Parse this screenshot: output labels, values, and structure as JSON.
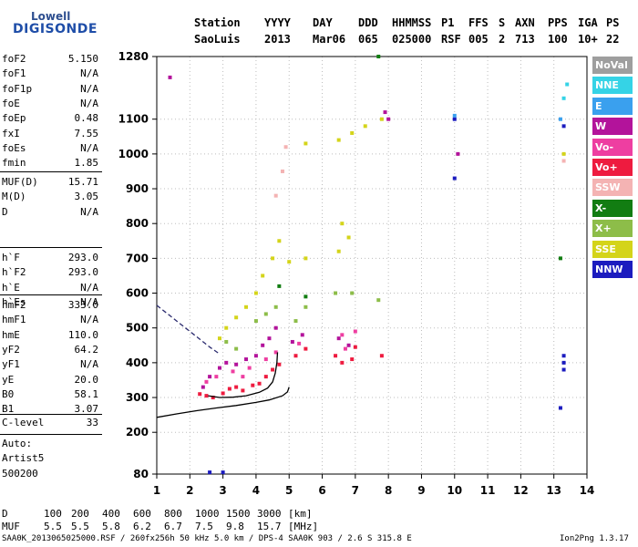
{
  "logo": {
    "top": "Lowell",
    "main": "DIGISONDE"
  },
  "header": {
    "row1": [
      "Station",
      "YYYY",
      "DAY",
      "DDD",
      "HHMMSS",
      "P1",
      "FFS",
      "S",
      "AXN",
      "PPS",
      "IGA",
      "PS"
    ],
    "row2": [
      "SaoLuis",
      "2013",
      "Mar06",
      "065",
      "025000",
      "RSF",
      "005",
      "2",
      "713",
      "100",
      "10+",
      "22"
    ]
  },
  "params": {
    "g1": [
      {
        "label": "foF2",
        "value": "5.150"
      },
      {
        "label": "foF1",
        "value": "N/A"
      },
      {
        "label": "foF1p",
        "value": "N/A"
      },
      {
        "label": "foE",
        "value": "N/A"
      },
      {
        "label": "foEp",
        "value": "0.48"
      },
      {
        "label": "fxI",
        "value": "7.55"
      },
      {
        "label": "foEs",
        "value": "N/A"
      },
      {
        "label": "fmin",
        "value": "1.85"
      }
    ],
    "g2": [
      {
        "label": "MUF(D)",
        "value": "15.71"
      },
      {
        "label": "M(D)",
        "value": "3.05"
      },
      {
        "label": "D",
        "value": "N/A"
      }
    ],
    "g3": [
      {
        "label": "h`F",
        "value": "293.0"
      },
      {
        "label": "h`F2",
        "value": "293.0"
      },
      {
        "label": "h`E",
        "value": "N/A"
      },
      {
        "label": "h`Es",
        "value": "N/A"
      }
    ],
    "g4": [
      {
        "label": "hmF2",
        "value": "333.0"
      },
      {
        "label": "hmF1",
        "value": "N/A"
      },
      {
        "label": "hmE",
        "value": "110.0"
      },
      {
        "label": "yF2",
        "value": "64.2"
      },
      {
        "label": "yF1",
        "value": "N/A"
      },
      {
        "label": "yE",
        "value": "20.0"
      },
      {
        "label": "B0",
        "value": "58.1"
      },
      {
        "label": "B1",
        "value": "3.07"
      }
    ],
    "clevel": {
      "label": "C-level",
      "value": "33"
    },
    "auto": [
      "Auto:",
      "Artist5",
      "500200"
    ]
  },
  "legend": [
    {
      "label": "NoVal",
      "color": "#9e9e9e"
    },
    {
      "label": "NNE",
      "color": "#35d3e6"
    },
    {
      "label": "E",
      "color": "#3aa0ee"
    },
    {
      "label": "W",
      "color": "#b3139b"
    },
    {
      "label": "Vo-",
      "color": "#ee3ea1"
    },
    {
      "label": "Vo+",
      "color": "#ee1b3f"
    },
    {
      "label": "SSW",
      "color": "#f4b3b3"
    },
    {
      "label": "X-",
      "color": "#127d12"
    },
    {
      "label": "X+",
      "color": "#8dbd49"
    },
    {
      "label": "SSE",
      "color": "#d4d41a"
    },
    {
      "label": "NNW",
      "color": "#1c1cbf"
    }
  ],
  "bottom": {
    "d_label": "D",
    "d_values": [
      "100",
      "200",
      "400",
      "600",
      "800",
      "1000",
      "1500",
      "3000",
      "[km]"
    ],
    "muf_label": "MUF",
    "muf_values": [
      "5.5",
      "5.5",
      "5.8",
      "6.2",
      "6.7",
      "7.5",
      "9.8",
      "15.7",
      "[MHz]"
    ],
    "footer_left": "SAA0K_2013065025000.RSF / 260fx256h 50 kHz 5.0 km / DPS-4 SAA0K 903 / 2.6 S 315.8 E",
    "footer_right": "Ion2Png 1.3.17"
  },
  "chart_data": {
    "type": "scatter",
    "xlim": [
      1,
      14
    ],
    "ylim": [
      80,
      1280
    ],
    "x_ticks": [
      1,
      2,
      3,
      4,
      5,
      6,
      7,
      8,
      9,
      10,
      11,
      12,
      13,
      14
    ],
    "y_ticks": [
      80,
      200,
      300,
      400,
      500,
      600,
      700,
      800,
      900,
      1000,
      1100,
      1280
    ],
    "series": [
      {
        "name": "Vo+",
        "color": "#ee1b3f",
        "points": [
          [
            2.3,
            310
          ],
          [
            2.5,
            305
          ],
          [
            2.7,
            300
          ],
          [
            3.0,
            312
          ],
          [
            3.2,
            325
          ],
          [
            3.4,
            330
          ],
          [
            3.6,
            320
          ],
          [
            3.9,
            335
          ],
          [
            4.1,
            340
          ],
          [
            4.3,
            360
          ],
          [
            4.5,
            380
          ],
          [
            4.7,
            395
          ],
          [
            5.2,
            420
          ],
          [
            5.5,
            440
          ],
          [
            6.4,
            420
          ],
          [
            6.6,
            400
          ],
          [
            6.9,
            410
          ],
          [
            7.0,
            445
          ],
          [
            7.8,
            420
          ]
        ]
      },
      {
        "name": "W",
        "color": "#b3139b",
        "points": [
          [
            2.4,
            330
          ],
          [
            2.6,
            360
          ],
          [
            2.9,
            385
          ],
          [
            3.1,
            400
          ],
          [
            3.4,
            395
          ],
          [
            3.7,
            410
          ],
          [
            4.0,
            420
          ],
          [
            4.2,
            450
          ],
          [
            4.4,
            470
          ],
          [
            4.6,
            500
          ],
          [
            5.1,
            460
          ],
          [
            5.4,
            480
          ],
          [
            6.5,
            470
          ],
          [
            6.8,
            450
          ],
          [
            7.9,
            1120
          ],
          [
            8.0,
            1100
          ],
          [
            1.4,
            1220
          ],
          [
            10.1,
            1000
          ]
        ]
      },
      {
        "name": "Vo-",
        "color": "#ee3ea1",
        "points": [
          [
            2.5,
            345
          ],
          [
            2.8,
            360
          ],
          [
            3.3,
            375
          ],
          [
            3.6,
            360
          ],
          [
            3.8,
            385
          ],
          [
            4.3,
            410
          ],
          [
            4.6,
            430
          ],
          [
            5.3,
            455
          ],
          [
            6.6,
            480
          ],
          [
            6.7,
            440
          ],
          [
            7.0,
            490
          ]
        ]
      },
      {
        "name": "SSE",
        "color": "#d4d41a",
        "points": [
          [
            2.9,
            470
          ],
          [
            3.1,
            500
          ],
          [
            3.4,
            530
          ],
          [
            3.7,
            560
          ],
          [
            4.0,
            600
          ],
          [
            4.2,
            650
          ],
          [
            4.5,
            700
          ],
          [
            4.7,
            750
          ],
          [
            5.0,
            690
          ],
          [
            5.5,
            700
          ],
          [
            6.5,
            720
          ],
          [
            6.8,
            760
          ],
          [
            6.6,
            800
          ],
          [
            5.5,
            1030
          ],
          [
            6.5,
            1040
          ],
          [
            6.9,
            1060
          ],
          [
            7.3,
            1080
          ],
          [
            7.8,
            1100
          ],
          [
            13.3,
            1000
          ]
        ]
      },
      {
        "name": "X+",
        "color": "#8dbd49",
        "points": [
          [
            3.1,
            460
          ],
          [
            3.4,
            440
          ],
          [
            4.0,
            520
          ],
          [
            4.3,
            540
          ],
          [
            4.6,
            560
          ],
          [
            5.2,
            520
          ],
          [
            5.5,
            560
          ],
          [
            6.4,
            600
          ],
          [
            6.9,
            600
          ],
          [
            7.7,
            580
          ]
        ]
      },
      {
        "name": "X-",
        "color": "#127d12",
        "points": [
          [
            4.7,
            620
          ],
          [
            5.5,
            590
          ],
          [
            7.7,
            1280
          ],
          [
            13.2,
            700
          ]
        ]
      },
      {
        "name": "NNW",
        "color": "#1c1cbf",
        "points": [
          [
            10.0,
            1100
          ],
          [
            10.0,
            930
          ],
          [
            13.3,
            420
          ],
          [
            13.3,
            400
          ],
          [
            13.3,
            380
          ],
          [
            13.2,
            270
          ],
          [
            13.3,
            1080
          ],
          [
            2.6,
            85
          ],
          [
            3.0,
            85
          ]
        ]
      },
      {
        "name": "SSW",
        "color": "#f4b3b3",
        "points": [
          [
            4.6,
            880
          ],
          [
            4.8,
            950
          ],
          [
            4.9,
            1020
          ],
          [
            13.3,
            980
          ]
        ]
      },
      {
        "name": "NNE",
        "color": "#35d3e6",
        "points": [
          [
            13.3,
            1160
          ],
          [
            13.4,
            1200
          ]
        ]
      },
      {
        "name": "E",
        "color": "#3aa0ee",
        "points": [
          [
            10.0,
            1110
          ],
          [
            13.2,
            1100
          ]
        ]
      }
    ],
    "curves": [
      {
        "name": "profile",
        "style": "solid",
        "points": [
          [
            1.0,
            243
          ],
          [
            1.6,
            253
          ],
          [
            2.2,
            262
          ],
          [
            2.8,
            270
          ],
          [
            3.4,
            277
          ],
          [
            4.0,
            286
          ],
          [
            4.4,
            293
          ],
          [
            4.8,
            305
          ],
          [
            4.95,
            316
          ],
          [
            5.0,
            330
          ]
        ]
      },
      {
        "name": "trace",
        "style": "solid",
        "points": [
          [
            2.55,
            305
          ],
          [
            2.9,
            300
          ],
          [
            3.3,
            301
          ],
          [
            3.7,
            305
          ],
          [
            4.1,
            315
          ],
          [
            4.35,
            327
          ],
          [
            4.5,
            345
          ],
          [
            4.58,
            370
          ],
          [
            4.63,
            400
          ],
          [
            4.65,
            430
          ]
        ]
      },
      {
        "name": "model",
        "style": "dashed",
        "points": [
          [
            1.0,
            565
          ],
          [
            1.4,
            535
          ],
          [
            1.8,
            505
          ],
          [
            2.2,
            475
          ],
          [
            2.6,
            445
          ],
          [
            2.9,
            425
          ]
        ]
      }
    ]
  }
}
